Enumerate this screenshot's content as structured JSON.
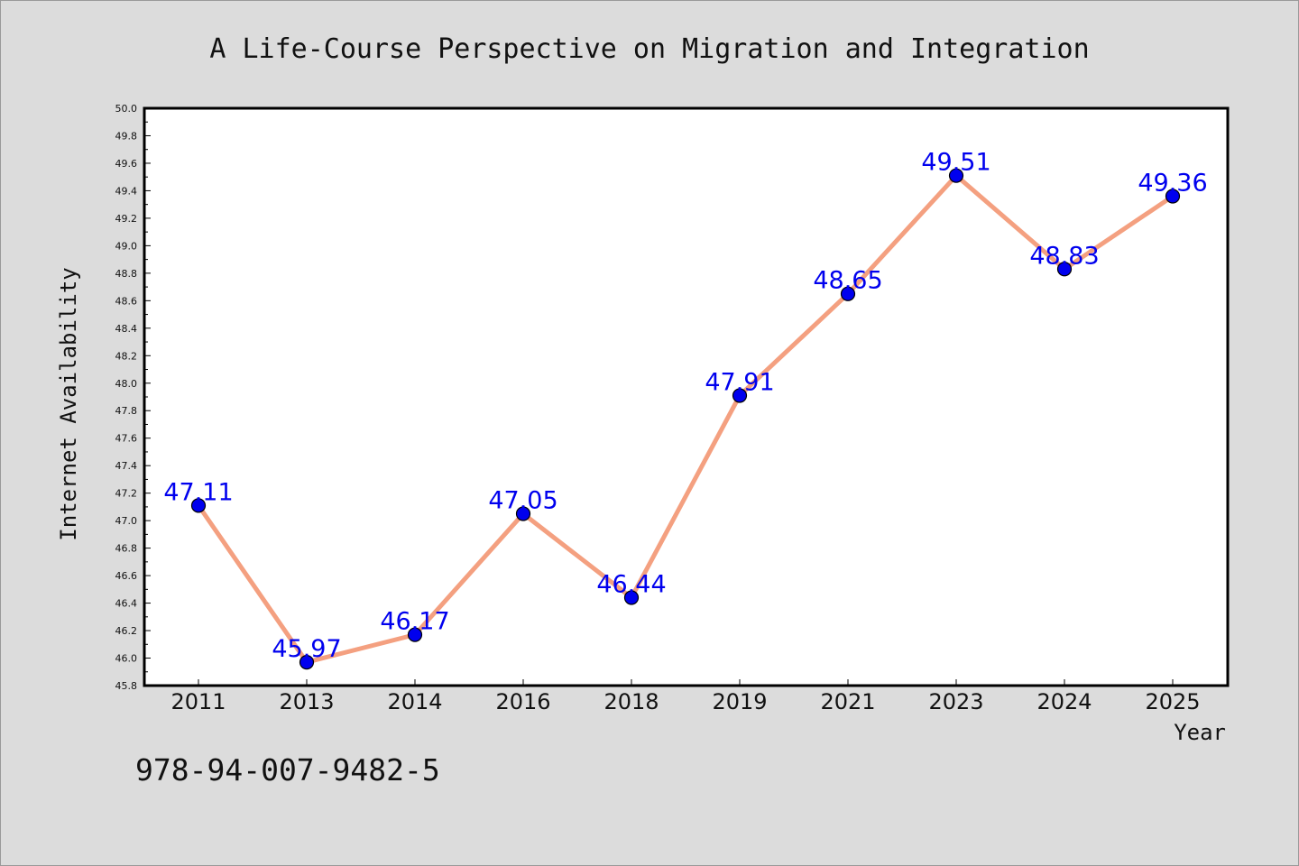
{
  "chart_data": {
    "type": "line",
    "title": "A Life-Course Perspective on Migration and Integration",
    "xlabel": "Year",
    "ylabel": "Internet Availability",
    "categories": [
      "2011",
      "2013",
      "2014",
      "2016",
      "2018",
      "2019",
      "2021",
      "2023",
      "2024",
      "2025"
    ],
    "values": [
      47.11,
      45.97,
      46.17,
      47.05,
      46.44,
      47.91,
      48.65,
      49.51,
      48.83,
      49.36
    ],
    "data_labels": [
      "47.11",
      "45.97",
      "46.17",
      "47.05",
      "46.44",
      "47.91",
      "48.65",
      "49.51",
      "48.83",
      "49.36"
    ],
    "ylim": [
      45.8,
      50.0
    ],
    "yticks": [
      "45.8",
      "46.0",
      "46.2",
      "46.4",
      "46.6",
      "46.8",
      "47.0",
      "47.2",
      "47.4",
      "47.6",
      "47.8",
      "48.0",
      "48.2",
      "48.4",
      "48.6",
      "48.8",
      "49.0",
      "49.2",
      "49.4",
      "49.6",
      "49.8",
      "50.0"
    ],
    "grid": false,
    "legend": "none",
    "colors": {
      "line": "#f4a080",
      "marker": "#0000ee",
      "label": "#0000ee",
      "plot_bg": "#ffffff",
      "page_bg": "#dcdcdc"
    }
  },
  "footer": {
    "isbn": "978-94-007-9482-5"
  }
}
